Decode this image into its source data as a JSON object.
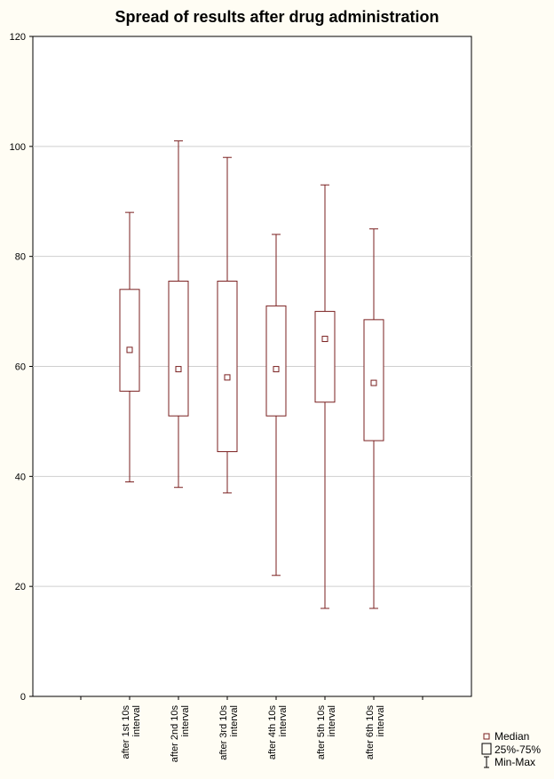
{
  "chart_data": {
    "type": "boxplot",
    "title": "Spread of results after drug administration",
    "xlabel": "",
    "ylabel": "",
    "ylim": [
      0,
      120
    ],
    "yticks": [
      0,
      20,
      40,
      60,
      80,
      100,
      120
    ],
    "grid": true,
    "categories": [
      [
        "after 1st 10s",
        "interval"
      ],
      [
        "after 2nd 10s",
        "interval"
      ],
      [
        "after 3rd 10s",
        "interval"
      ],
      [
        "after 4th 10s",
        "interval"
      ],
      [
        "after 5th 10s",
        "interval"
      ],
      [
        "after 6th 10s",
        "interval"
      ]
    ],
    "boxes": [
      {
        "min": 39,
        "q1": 55.5,
        "median": 63,
        "q3": 74,
        "max": 88
      },
      {
        "min": 38,
        "q1": 51,
        "median": 59.5,
        "q3": 75.5,
        "max": 101
      },
      {
        "min": 37,
        "q1": 44.5,
        "median": 58,
        "q3": 75.5,
        "max": 98
      },
      {
        "min": 22,
        "q1": 51,
        "median": 59.5,
        "q3": 71,
        "max": 84
      },
      {
        "min": 16,
        "q1": 53.5,
        "median": 65,
        "q3": 70,
        "max": 93
      },
      {
        "min": 16,
        "q1": 46.5,
        "median": 57,
        "q3": 68.5,
        "max": 85
      }
    ],
    "legend": {
      "position": "bottom-right",
      "items": [
        "Median",
        "25%-75%",
        "Min-Max"
      ]
    },
    "colors": {
      "box": "#7a1f1f",
      "grid": "#cfcfcf",
      "background": "#fffdf4"
    }
  }
}
